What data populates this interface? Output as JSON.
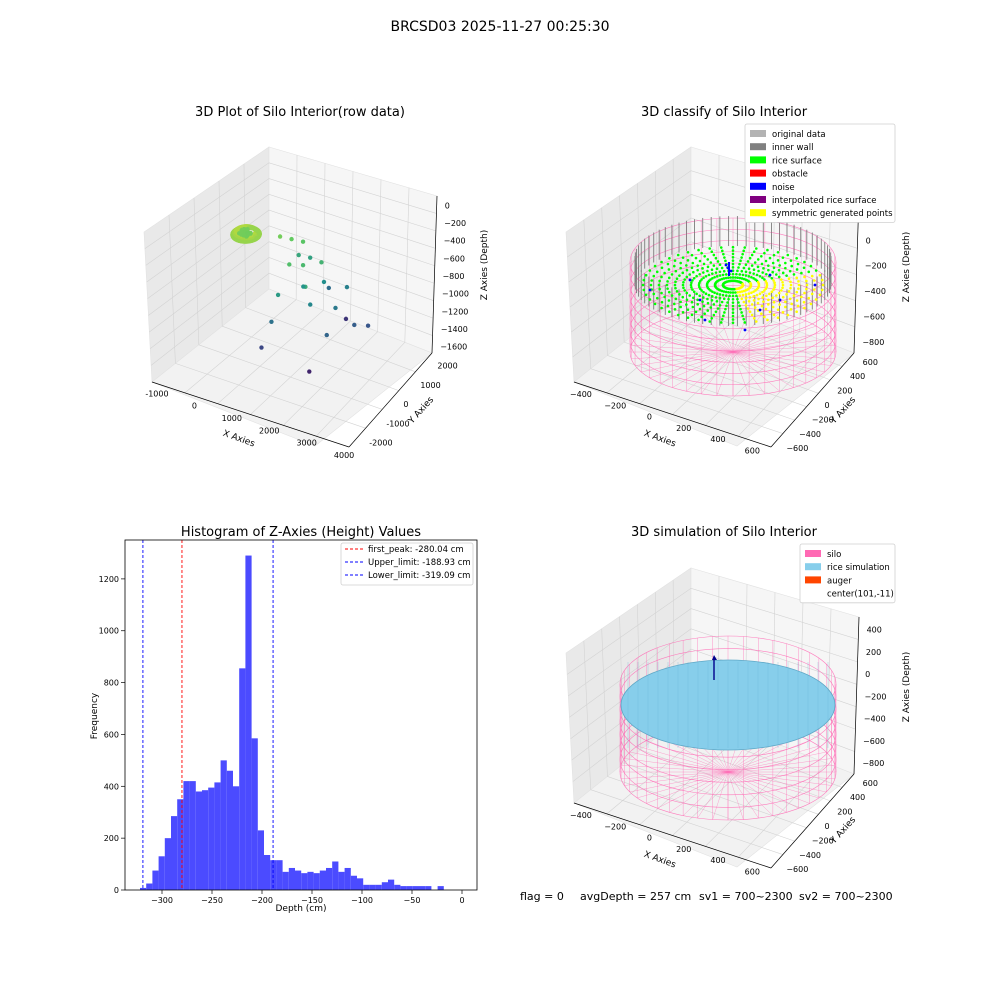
{
  "figure": {
    "suptitle": "BRCSD03 2025-11-27 00:25:30",
    "footer": {
      "flag": "flag = 0",
      "avg_depth": "avgDepth = 257 cm",
      "sv1": "sv1 = 700~2300",
      "sv2": "sv2 = 700~2300"
    }
  },
  "chart_data": [
    {
      "type": "scatter",
      "projection": "3d",
      "title": "3D Plot of Silo Interior(row data)",
      "xlabel": "X Axies",
      "ylabel": "Y Axies",
      "zlabel": "Z Axies (Depth)",
      "xlim": [
        -1200,
        4700
      ],
      "ylim": [
        -2500,
        2600
      ],
      "zlim": [
        -1700,
        150
      ],
      "xticks": [
        "-1000",
        "0",
        "1000",
        "2000",
        "3000",
        "4000"
      ],
      "yticks": [
        "-2000",
        "-1000",
        "0",
        "1000",
        "2000"
      ],
      "zticks": [
        "0",
        "−200",
        "−400",
        "−600",
        "−800",
        "−1000",
        "−1200",
        "−1400",
        "−1600"
      ],
      "colormap": "viridis",
      "series": [
        {
          "x": [
            -50,
            0,
            50,
            100,
            150,
            200,
            -100,
            30,
            120,
            -80,
            60,
            180,
            -20,
            90,
            140,
            -60,
            40,
            160,
            10,
            110,
            70,
            -40,
            130,
            20,
            80
          ],
          "y": [
            -100,
            -50,
            0,
            50,
            100,
            -150,
            80,
            -120,
            20,
            150,
            -30,
            60,
            110,
            -90,
            -10,
            40,
            130,
            -60,
            70,
            -140,
            90,
            -20,
            10,
            160,
            -80
          ],
          "z": [
            -250,
            -260,
            -240,
            -255,
            -270,
            -245,
            -265,
            -250,
            -235,
            -260,
            -275,
            -250,
            -245,
            -255,
            -265,
            -240,
            -250,
            -260,
            -255,
            -245,
            -270,
            -250,
            -262,
            -248,
            -258
          ]
        },
        {
          "x": [
            900,
            1100,
            1300,
            1500,
            1700,
            1900,
            2100,
            1000,
            1200,
            1400,
            1600,
            1800,
            2000,
            2200,
            2400,
            1300,
            1500,
            2600,
            2800,
            3000,
            1100,
            1900,
            2300
          ],
          "y": [
            300,
            500,
            700,
            -200,
            100,
            600,
            -400,
            900,
            1100,
            -600,
            200,
            800,
            -100,
            1200,
            400,
            -800,
            1400,
            -300,
            600,
            900,
            -1000,
            1500,
            -700
          ],
          "z": [
            -250,
            -300,
            -350,
            -400,
            -450,
            -500,
            -550,
            -600,
            -650,
            -700,
            -750,
            -800,
            -850,
            -900,
            -950,
            -1000,
            -1050,
            -1100,
            -1150,
            -1200,
            -1300,
            -1400,
            -1500
          ]
        }
      ]
    },
    {
      "type": "scatter",
      "projection": "3d",
      "title": "3D classify of Silo Interior",
      "xlabel": "X Axies",
      "ylabel": "Y Axies",
      "zlabel": "Z Axies (Depth)",
      "xlim": [
        -550,
        750
      ],
      "ylim": [
        -650,
        650
      ],
      "zlim": [
        -900,
        300
      ],
      "xticks": [
        "−400",
        "−200",
        "0",
        "200",
        "400",
        "600"
      ],
      "yticks": [
        "−600",
        "−400",
        "−200",
        "0",
        "200",
        "400",
        "600"
      ],
      "zticks": [
        "200",
        "0",
        "−200",
        "−400",
        "−600",
        "−800"
      ],
      "legend": [
        {
          "label": "original data",
          "color": "#b3b3b3"
        },
        {
          "label": "inner wall",
          "color": "#808080"
        },
        {
          "label": "rice surface",
          "color": "#00ff00"
        },
        {
          "label": "obstacle",
          "color": "#ff0000"
        },
        {
          "label": "noise",
          "color": "#0000ff"
        },
        {
          "label": "interpolated rice surface",
          "color": "#800080"
        },
        {
          "label": "symmetric generated points",
          "color": "#ffff00"
        }
      ],
      "legend_loc": "upper right",
      "silo_radius": 550,
      "silo_z": [
        -900,
        200
      ],
      "surface_z": -280
    },
    {
      "type": "bar",
      "title": "Histogram of Z-Axies (Height) Values",
      "xlabel": "Depth (cm)",
      "ylabel": "Frequency",
      "xlim": [
        -337,
        15
      ],
      "ylim": [
        0,
        1350
      ],
      "xticks": [
        -300,
        -250,
        -200,
        -150,
        -100,
        -50,
        0
      ],
      "yticks": [
        0,
        200,
        400,
        600,
        800,
        1000,
        1200
      ],
      "bar_color": "#4b4bff",
      "bin_width": 6.2,
      "bin_start": -322,
      "values": [
        8,
        25,
        75,
        130,
        200,
        285,
        350,
        420,
        420,
        380,
        385,
        395,
        415,
        500,
        460,
        400,
        855,
        1290,
        585,
        230,
        135,
        115,
        115,
        70,
        85,
        75,
        65,
        70,
        65,
        75,
        85,
        110,
        70,
        85,
        55,
        45,
        20,
        20,
        20,
        30,
        40,
        20,
        15,
        15,
        15,
        15,
        15,
        0,
        15
      ],
      "lines": [
        {
          "label": "first_peak: -280.04 cm",
          "value": -280.04,
          "color": "#ff0000"
        },
        {
          "label": "Upper_limit: -188.93 cm",
          "value": -188.93,
          "color": "#0000ff"
        },
        {
          "label": "Lower_limit: -319.09 cm",
          "value": -319.09,
          "color": "#0000ff"
        }
      ],
      "legend_loc": "upper right"
    },
    {
      "type": "surface",
      "projection": "3d",
      "title": "3D simulation of Silo Interior",
      "xlabel": "X Axies",
      "ylabel": "Y Axies",
      "zlabel": "Z Axies (Depth)",
      "xlim": [
        -550,
        750
      ],
      "ylim": [
        -650,
        650
      ],
      "zlim": [
        -900,
        450
      ],
      "xticks": [
        "−400",
        "−200",
        "0",
        "200",
        "400",
        "600"
      ],
      "yticks": [
        "−600",
        "−400",
        "−200",
        "0",
        "200",
        "400",
        "600"
      ],
      "zticks": [
        "400",
        "200",
        "0",
        "−200",
        "−400",
        "−600",
        "−800"
      ],
      "legend": [
        {
          "label": "silo",
          "color": "#ff69b4"
        },
        {
          "label": "rice simulation",
          "color": "#87ceeb"
        },
        {
          "label": "auger",
          "color": "#ff4500"
        },
        {
          "label": "center(101,-11)",
          "color": ""
        }
      ],
      "legend_loc": "upper right",
      "silo_radius": 550,
      "silo_z": [
        -900,
        200
      ],
      "surface_z": -257
    }
  ]
}
